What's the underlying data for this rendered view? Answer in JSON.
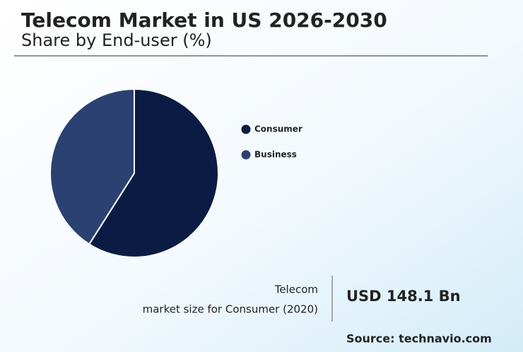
{
  "chart_data": {
    "type": "pie",
    "title": "Telecom Market in US 2026-2030",
    "subtitle": "Share by End-user (%)",
    "categories": [
      "Consumer",
      "Business"
    ],
    "values": [
      59,
      41
    ],
    "colors": [
      "#0a1c44",
      "#2b4171"
    ]
  },
  "callout": {
    "label_line1": "Telecom",
    "label_line2": "market size for Consumer (2020)",
    "value": "USD 148.1 Bn"
  },
  "source": "Source: technavio.com"
}
